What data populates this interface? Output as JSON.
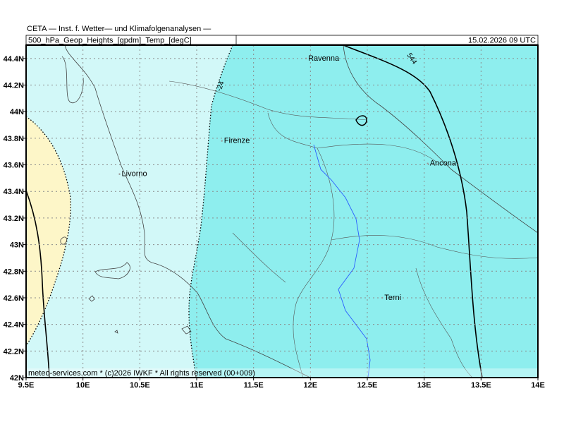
{
  "map": {
    "title": "CETA — Inst. f. Wetter— und Klimafolgenanalysen —",
    "subtitle": "500_hPa_Geop_Heights_[gpdm]_Temp_[degC]",
    "valid_time": "15.02.2026  09  UTC",
    "lonlim": [
      9.5,
      14
    ],
    "latlim": [
      42,
      44.5
    ],
    "lon_ticks": [
      {
        "value": 9.5,
        "label": "9.5E"
      },
      {
        "value": 10,
        "label": "10E"
      },
      {
        "value": 10.5,
        "label": "10.5E"
      },
      {
        "value": 11,
        "label": "11E"
      },
      {
        "value": 11.5,
        "label": "11.5E"
      },
      {
        "value": 12,
        "label": "12E"
      },
      {
        "value": 12.5,
        "label": "12.5E"
      },
      {
        "value": 13,
        "label": "13E"
      },
      {
        "value": 13.5,
        "label": "13.5E"
      },
      {
        "value": 14,
        "label": "14E"
      }
    ],
    "lat_ticks": [
      {
        "value": 42,
        "label": "42N"
      },
      {
        "value": 42.2,
        "label": "42.2N"
      },
      {
        "value": 42.4,
        "label": "42.4N"
      },
      {
        "value": 42.6,
        "label": "42.6N"
      },
      {
        "value": 42.8,
        "label": "42.8N"
      },
      {
        "value": 43,
        "label": "43N"
      },
      {
        "value": 43.2,
        "label": "43.2N"
      },
      {
        "value": 43.4,
        "label": "43.4N"
      },
      {
        "value": 43.6,
        "label": "43.6N"
      },
      {
        "value": 43.8,
        "label": "43.8N"
      },
      {
        "value": 44,
        "label": "44N"
      },
      {
        "value": 44.2,
        "label": "44.2N"
      },
      {
        "value": 44.4,
        "label": "44.4N"
      }
    ],
    "cities": [
      {
        "name": "Ravenna",
        "lon": 11.98,
        "lat": 44.4
      },
      {
        "name": "Firenze",
        "lon": 11.24,
        "lat": 43.78
      },
      {
        "name": "Livorno",
        "lon": 10.34,
        "lat": 43.53
      },
      {
        "name": "Ancona",
        "lon": 13.05,
        "lat": 43.61
      },
      {
        "name": "Terni",
        "lon": 12.65,
        "lat": 42.6
      }
    ],
    "contour_labels": [
      "-24",
      "544"
    ],
    "footer": "meteo-services.com * (c)2026 IWKF * All rights reserved (00+009)"
  }
}
